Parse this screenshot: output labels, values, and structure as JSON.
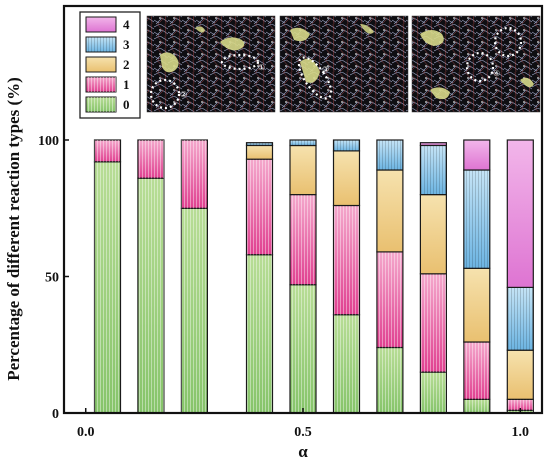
{
  "chart_data": {
    "type": "bar",
    "stacked": true,
    "xlabel": "α",
    "ylabel": "Percentage of different  reaction types (%)",
    "xlim": [
      -0.05,
      1.05
    ],
    "ylim": [
      0,
      100
    ],
    "xticks": [
      {
        "value": 0.0,
        "label": "0.0"
      },
      {
        "value": 0.5,
        "label": "0.5"
      },
      {
        "value": 1.0,
        "label": "1.0"
      }
    ],
    "yticks": [
      {
        "value": 0,
        "label": "0"
      },
      {
        "value": 50,
        "label": "50"
      },
      {
        "value": 100,
        "label": "100"
      }
    ],
    "x": [
      0.05,
      0.15,
      0.25,
      0.4,
      0.5,
      0.6,
      0.7,
      0.8,
      0.9,
      1.0
    ],
    "series": [
      {
        "name": "0",
        "color": "#9ed07c",
        "pattern": "vertical",
        "values": [
          92,
          86,
          75,
          58,
          47,
          36,
          24,
          15,
          5,
          1
        ]
      },
      {
        "name": "1",
        "color": "#e8509a",
        "pattern": "vertical",
        "values": [
          8,
          14,
          25,
          35,
          33,
          40,
          35,
          36,
          21,
          4
        ]
      },
      {
        "name": "2",
        "color": "#f0d08a",
        "pattern": "none",
        "values": [
          0,
          0,
          0,
          5,
          18,
          20,
          30,
          29,
          27,
          18
        ]
      },
      {
        "name": "3",
        "color": "#8ec6ea",
        "pattern": "vertical",
        "values": [
          0,
          0,
          0,
          1,
          2,
          4,
          11,
          18,
          36,
          23
        ]
      },
      {
        "name": "4",
        "color": "#e990dc",
        "pattern": "none",
        "values": [
          0,
          0,
          0,
          0,
          0,
          0,
          0,
          1,
          11,
          54
        ]
      }
    ],
    "legend": {
      "placement": "top-left",
      "order": [
        "4",
        "3",
        "2",
        "1",
        "0"
      ]
    },
    "grid": false,
    "insets": [
      {
        "tags": [
          "①",
          "②"
        ]
      },
      {
        "tags": [
          "③"
        ]
      },
      {
        "tags": [
          "④"
        ]
      }
    ]
  }
}
